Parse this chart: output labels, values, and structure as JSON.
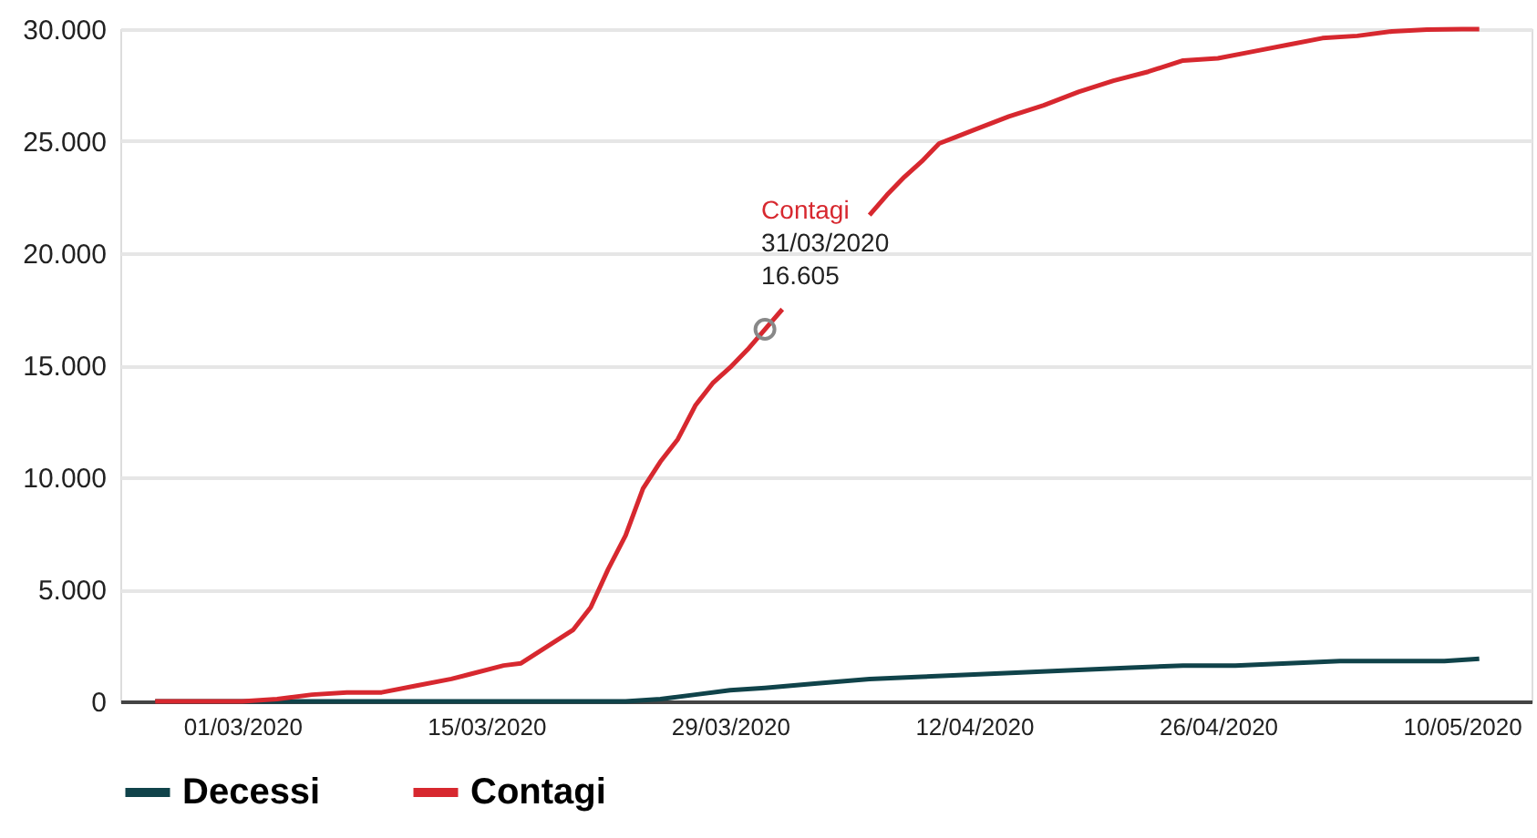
{
  "chart_data": {
    "type": "line",
    "xlim": [
      "2020-02-23",
      "2020-05-14"
    ],
    "ylim": [
      0,
      30000
    ],
    "xticks": [
      {
        "value": "2020-03-01",
        "label": "01/03/2020"
      },
      {
        "value": "2020-03-15",
        "label": "15/03/2020"
      },
      {
        "value": "2020-03-29",
        "label": "29/03/2020"
      },
      {
        "value": "2020-04-12",
        "label": "12/04/2020"
      },
      {
        "value": "2020-04-26",
        "label": "26/04/2020"
      },
      {
        "value": "2020-05-10",
        "label": "10/05/2020"
      }
    ],
    "yticks": [
      {
        "value": 0,
        "label": "0"
      },
      {
        "value": 5000,
        "label": "5.000"
      },
      {
        "value": 10000,
        "label": "10.000"
      },
      {
        "value": 15000,
        "label": "15.000"
      },
      {
        "value": 20000,
        "label": "20.000"
      },
      {
        "value": 25000,
        "label": "25.000"
      },
      {
        "value": 30000,
        "label": "30.000"
      }
    ],
    "grid": "y",
    "legend": "bottom",
    "marker": "none",
    "line_style": "solid",
    "annotations": [
      {
        "text": "Contagi\n31/03/2020\n16.605",
        "x": "2020-03-31",
        "y": 16605
      }
    ],
    "series": [
      {
        "name": "Decessi",
        "color": "#10434a",
        "x": [
          "2020-02-25",
          "2020-03-10",
          "2020-03-20",
          "2020-03-23",
          "2020-03-25",
          "2020-03-27",
          "2020-03-29",
          "2020-03-31",
          "2020-04-03",
          "2020-04-06",
          "2020-04-09",
          "2020-04-12",
          "2020-04-15",
          "2020-04-18",
          "2020-04-21",
          "2020-04-24",
          "2020-04-27",
          "2020-04-30",
          "2020-05-03",
          "2020-05-06",
          "2020-05-09",
          "2020-05-11"
        ],
        "values": [
          0,
          0,
          0,
          0,
          100,
          300,
          500,
          600,
          800,
          1000,
          1100,
          1200,
          1300,
          1400,
          1500,
          1600,
          1600,
          1700,
          1800,
          1800,
          1800,
          1900
        ]
      },
      {
        "name": "Contagi",
        "color": "#d7282f",
        "x": [
          "2020-02-25",
          "2020-02-28",
          "2020-03-01",
          "2020-03-03",
          "2020-03-05",
          "2020-03-07",
          "2020-03-09",
          "2020-03-11",
          "2020-03-13",
          "2020-03-14",
          "2020-03-16",
          "2020-03-17",
          "2020-03-18",
          "2020-03-19",
          "2020-03-20",
          "2020-03-21",
          "2020-03-22",
          "2020-03-23",
          "2020-03-24",
          "2020-03-25",
          "2020-03-26",
          "2020-03-27",
          "2020-03-28",
          "2020-03-29",
          "2020-03-30",
          "2020-03-31",
          "2020-04-01",
          "2020-04-03",
          "2020-04-06",
          "2020-04-07",
          "2020-04-08",
          "2020-04-09",
          "2020-04-10",
          "2020-04-11",
          "2020-04-12",
          "2020-04-14",
          "2020-04-16",
          "2020-04-18",
          "2020-04-20",
          "2020-04-22",
          "2020-04-24",
          "2020-04-26",
          "2020-04-28",
          "2020-04-30",
          "2020-05-02",
          "2020-05-04",
          "2020-05-06",
          "2020-05-08",
          "2020-05-10",
          "2020-05-11"
        ],
        "values": [
          0,
          0,
          0,
          100,
          300,
          400,
          400,
          700,
          1000,
          1200,
          1600,
          1700,
          2200,
          2700,
          3200,
          4200,
          5900,
          7400,
          9500,
          10700,
          11700,
          13200,
          14200,
          14900,
          15700,
          16605,
          17500,
          null,
          21700,
          22600,
          23400,
          24100,
          24900,
          25200,
          25500,
          26100,
          26600,
          27200,
          27700,
          28100,
          28600,
          28700,
          29000,
          29300,
          29600,
          29700,
          29900,
          29980,
          30000,
          30000
        ]
      }
    ]
  }
}
